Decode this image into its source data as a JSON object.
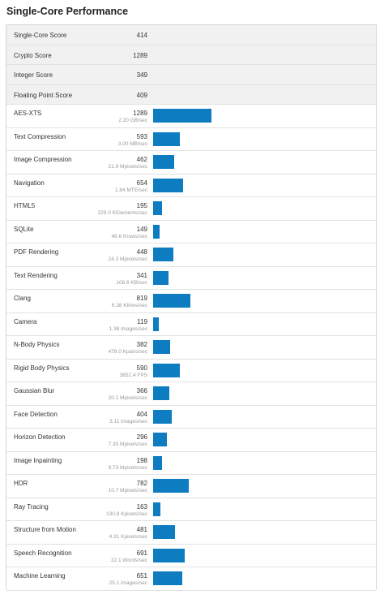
{
  "title": "Single-Core Performance",
  "summary": [
    {
      "label": "Single-Core Score",
      "value": 414
    },
    {
      "label": "Crypto Score",
      "value": 1289
    },
    {
      "label": "Integer Score",
      "value": 349
    },
    {
      "label": "Floating Point Score",
      "value": 409
    }
  ],
  "benchmarks": [
    {
      "name": "AES-XTS",
      "score": 1289,
      "detail": "2.20 GB/sec"
    },
    {
      "name": "Text Compression",
      "score": 593,
      "detail": "3.00 MB/sec"
    },
    {
      "name": "Image Compression",
      "score": 462,
      "detail": "21.9 Mpixels/sec"
    },
    {
      "name": "Navigation",
      "score": 654,
      "detail": "1.84 MTE/sec"
    },
    {
      "name": "HTML5",
      "score": 195,
      "detail": "229.0 KElements/sec"
    },
    {
      "name": "SQLite",
      "score": 149,
      "detail": "46.6 Krows/sec"
    },
    {
      "name": "PDF Rendering",
      "score": 448,
      "detail": "24.3 Mpixels/sec"
    },
    {
      "name": "Text Rendering",
      "score": 341,
      "detail": "108.6 KB/sec"
    },
    {
      "name": "Clang",
      "score": 819,
      "detail": "6.38 Klines/sec"
    },
    {
      "name": "Camera",
      "score": 119,
      "detail": "1.38 images/sec"
    },
    {
      "name": "N-Body Physics",
      "score": 382,
      "detail": "478.0 Kpairs/sec"
    },
    {
      "name": "Rigid Body Physics",
      "score": 590,
      "detail": "3652.4 FPS"
    },
    {
      "name": "Gaussian Blur",
      "score": 366,
      "detail": "20.1 Mpixels/sec"
    },
    {
      "name": "Face Detection",
      "score": 404,
      "detail": "3.11 images/sec"
    },
    {
      "name": "Horizon Detection",
      "score": 296,
      "detail": "7.30 Mpixels/sec"
    },
    {
      "name": "Image Inpainting",
      "score": 198,
      "detail": "9.73 Mpixels/sec"
    },
    {
      "name": "HDR",
      "score": 782,
      "detail": "10.7 Mpixels/sec"
    },
    {
      "name": "Ray Tracing",
      "score": 163,
      "detail": "130.8 Kpixels/sec"
    },
    {
      "name": "Structure from Motion",
      "score": 481,
      "detail": "4.31 Kpixels/sec"
    },
    {
      "name": "Speech Recognition",
      "score": 691,
      "detail": "22.1 Words/sec"
    },
    {
      "name": "Machine Learning",
      "score": 651,
      "detail": "25.1 images/sec"
    }
  ]
}
